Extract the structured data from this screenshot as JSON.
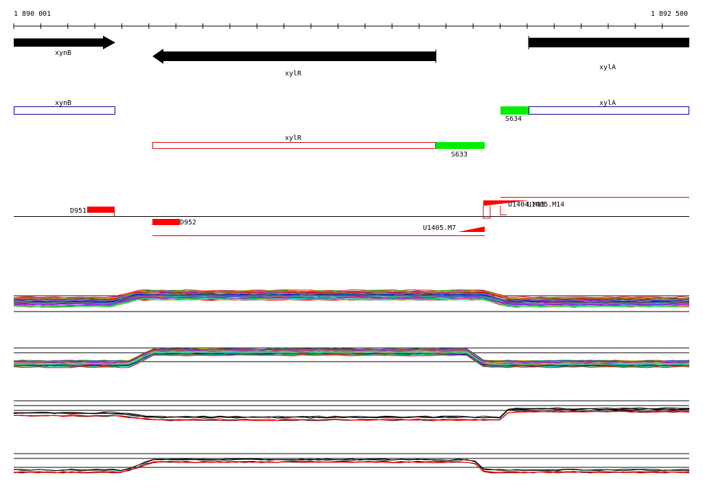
{
  "ruler": {
    "start": "1 890 001",
    "end": "1 892 500"
  },
  "genes": [
    {
      "label": "xynB"
    },
    {
      "label": "xylR"
    },
    {
      "label": "xylA"
    }
  ],
  "annotations": [
    {
      "label": "xynB"
    },
    {
      "label": "xylA"
    },
    {
      "label": "xylR"
    }
  ],
  "segments": [
    {
      "label": "S634"
    },
    {
      "label": "S633"
    }
  ],
  "features": [
    {
      "label": "D951"
    },
    {
      "label": "D952"
    },
    {
      "label": "U1405.M7"
    },
    {
      "label": "U1404.M15"
    },
    {
      "label": "U1405.M14"
    }
  ]
}
